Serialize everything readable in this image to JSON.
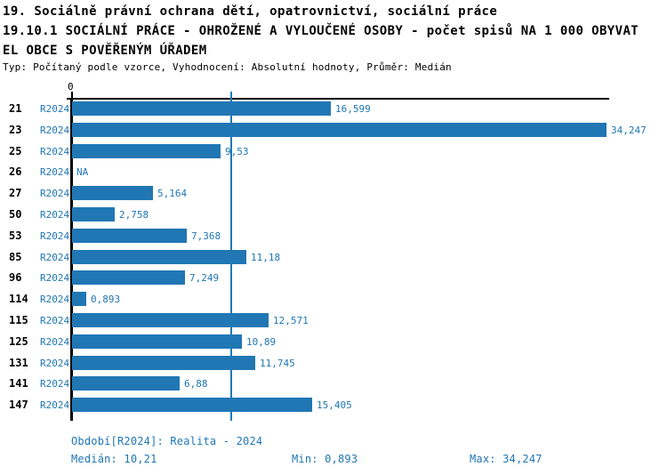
{
  "header": {
    "title_line1": "19. Sociálně právní ochrana dětí, opatrovnictví, sociální práce",
    "title_line2": "19.10.1 SOCIÁLNÍ PRÁCE - OHROŽENÉ A VYLOUČENÉ OSOBY - počet spisů NA 1 000 OBYVAT",
    "title_line3": "EL OBCE S POVĚŘENÝM ÚŘADEM",
    "meta": "Typ: Počítaný podle vzorce, Vyhodnocení: Absolutní hodnoty, Průměr: Medián"
  },
  "chart_data": {
    "type": "bar",
    "orientation": "horizontal",
    "title": "19.10.1 SOCIÁLNÍ PRÁCE - OHROŽENÉ A VYLOUČENÉ OSOBY - počet spisů NA 1 000 OBYVATEL OBCE S POVĚŘENÝM ÚŘADEM",
    "series_label": "R2024",
    "categories": [
      "21",
      "23",
      "25",
      "26",
      "27",
      "50",
      "53",
      "85",
      "96",
      "114",
      "115",
      "125",
      "131",
      "141",
      "147"
    ],
    "values": [
      16.599,
      34.247,
      9.53,
      null,
      5.164,
      2.758,
      7.368,
      11.18,
      7.249,
      0.893,
      12.571,
      10.89,
      11.745,
      6.88,
      15.405
    ],
    "value_labels": [
      "16,599",
      "34,247",
      "9,53",
      "NA",
      "5,164",
      "2,758",
      "7,368",
      "11,18",
      "7,249",
      "0,893",
      "12,571",
      "10,89",
      "11,745",
      "6,88",
      "15,405"
    ],
    "axis": {
      "zero_label": "0",
      "min": 0,
      "max": 34.247,
      "median_reference": 10.21,
      "grid": false
    },
    "colors": {
      "bar": "#2077b4",
      "median_line": "#2077b4",
      "axis": "#000000",
      "label_blue": "#2077b4"
    },
    "legend_position": "none"
  },
  "footer": {
    "period": "Období[R2024]: Realita - 2024",
    "median": "Medián: 10,21",
    "min": "Min: 0,893",
    "max": "Max: 34,247"
  }
}
